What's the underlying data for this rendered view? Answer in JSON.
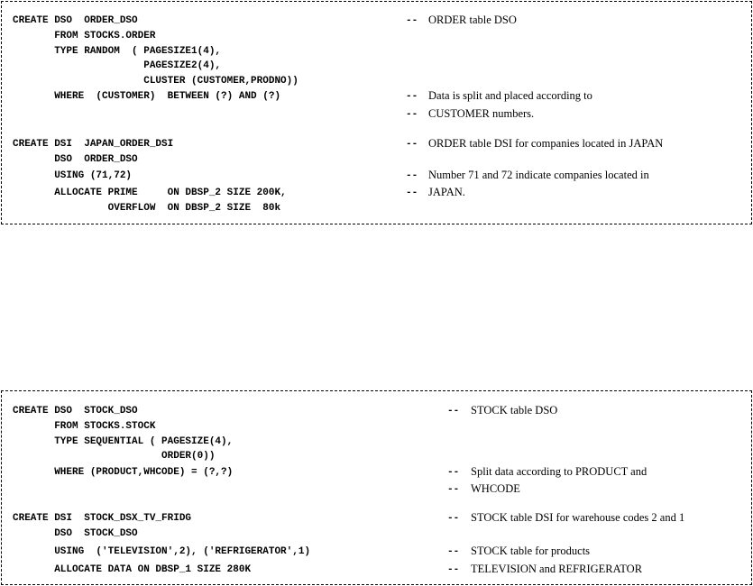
{
  "blocks": [
    {
      "lines": [
        {
          "code": "CREATE DSO  ORDER_DSO",
          "comment": "ORDER table DSO"
        },
        {
          "code": "       FROM STOCKS.ORDER",
          "comment": null
        },
        {
          "code": "       TYPE RANDOM  ( PAGESIZE1(4),",
          "comment": null
        },
        {
          "code": "                      PAGESIZE2(4),",
          "comment": null
        },
        {
          "code": "                      CLUSTER (CUSTOMER,PRODNO))",
          "comment": null
        },
        {
          "code": "       WHERE  (CUSTOMER)  BETWEEN (?) AND (?)",
          "comment": "Data is split and placed according to"
        },
        {
          "code": "",
          "comment": "CUSTOMER numbers."
        },
        {
          "code": "CREATE DSI  JAPAN_ORDER_DSI",
          "comment": "ORDER table DSI for companies located in JAPAN"
        },
        {
          "code": "       DSO  ORDER_DSO",
          "comment": null
        },
        {
          "code": "       USING (71,72)",
          "comment": "Number 71 and 72 indicate companies located in"
        },
        {
          "code": "       ALLOCATE PRIME     ON DBSP_2 SIZE 200K,",
          "comment": "JAPAN."
        },
        {
          "code": "                OVERFLOW  ON DBSP_2 SIZE  80k",
          "comment": null
        }
      ]
    },
    {
      "lines": [
        {
          "code": "CREATE DSO  STOCK_DSO",
          "comment": "STOCK table DSO"
        },
        {
          "code": "       FROM STOCKS.STOCK",
          "comment": null
        },
        {
          "code": "       TYPE SEQUENTIAL ( PAGESIZE(4),",
          "comment": null
        },
        {
          "code": "                         ORDER(0))",
          "comment": null
        },
        {
          "code": "       WHERE (PRODUCT,WHCODE) = (?,?)",
          "comment": "Split data according to PRODUCT and"
        },
        {
          "code": "",
          "comment": "WHCODE"
        },
        {
          "code": "CREATE DSI  STOCK_DSX_TV_FRIDG",
          "comment": "STOCK table DSI for warehouse codes 2 and 1"
        },
        {
          "code": "       DSO  STOCK_DSO",
          "comment": null
        },
        {
          "code": "       USING  ('TELEVISION',2), ('REFRIGERATOR',1)",
          "comment": "STOCK table for products"
        },
        {
          "code": "       ALLOCATE DATA ON DBSP_1 SIZE 280K",
          "comment": "TELEVISION and REFRIGERATOR"
        }
      ]
    }
  ],
  "comment_marker": "--"
}
